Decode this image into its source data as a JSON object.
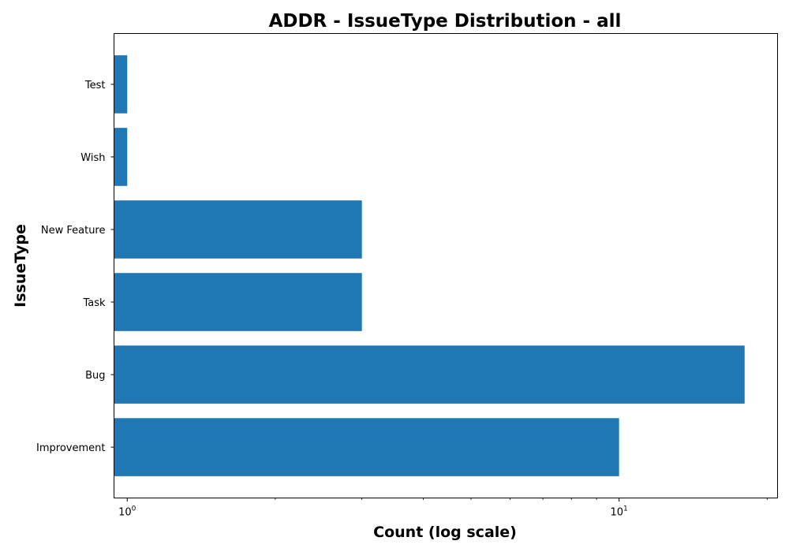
{
  "chart_data": {
    "type": "bar",
    "orientation": "horizontal",
    "title": "ADDR - IssueType Distribution - all",
    "xlabel": "Count (log scale)",
    "ylabel": "IssueType",
    "xscale": "log",
    "xlim": [
      0.94,
      21
    ],
    "categories": [
      "Improvement",
      "Bug",
      "Task",
      "New Feature",
      "Wish",
      "Test"
    ],
    "values": [
      10,
      18,
      3,
      3,
      1,
      1
    ],
    "major_ticks": [
      {
        "value": 1,
        "base": "10",
        "exp": "0"
      },
      {
        "value": 10,
        "base": "10",
        "exp": "1"
      }
    ],
    "minor_ticks": [
      2,
      3,
      4,
      5,
      6,
      7,
      8,
      9,
      20
    ],
    "bar_color": "#1f77b4"
  }
}
